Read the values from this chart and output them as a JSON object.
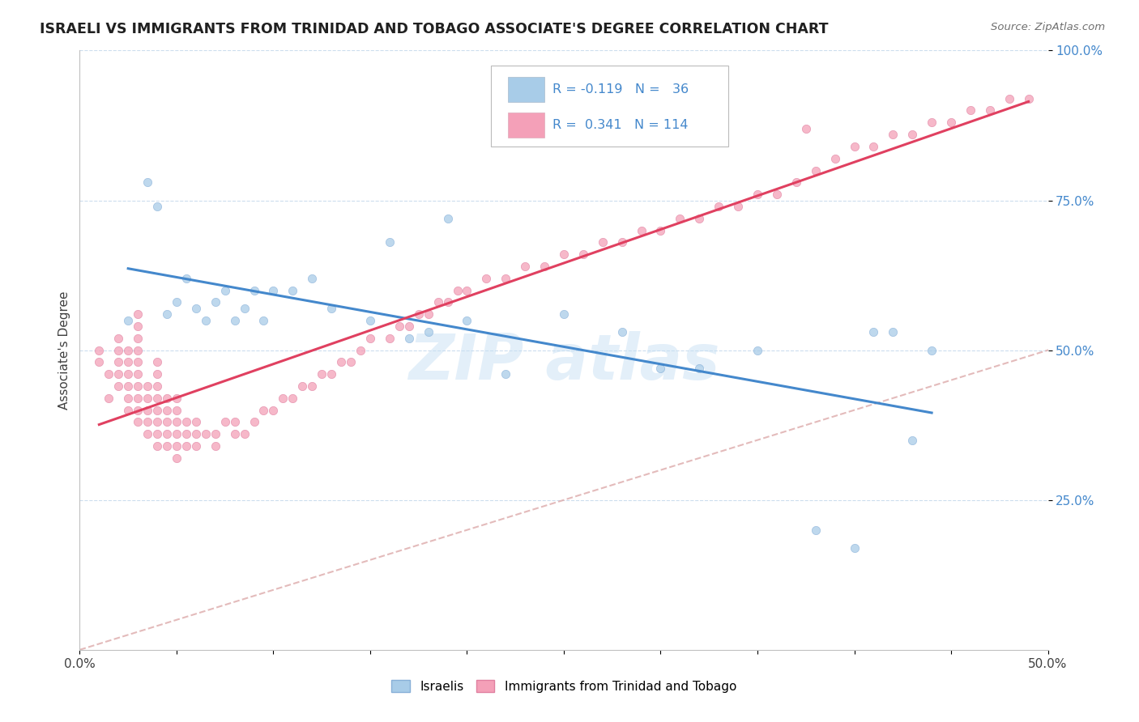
{
  "title": "ISRAELI VS IMMIGRANTS FROM TRINIDAD AND TOBAGO ASSOCIATE'S DEGREE CORRELATION CHART",
  "source": "Source: ZipAtlas.com",
  "ylabel_text": "Associate's Degree",
  "xlim": [
    0.0,
    0.5
  ],
  "ylim": [
    0.0,
    1.0
  ],
  "xtick_vals": [
    0.0,
    0.05,
    0.1,
    0.15,
    0.2,
    0.25,
    0.3,
    0.35,
    0.4,
    0.45,
    0.5
  ],
  "ytick_vals": [
    0.25,
    0.5,
    0.75,
    1.0
  ],
  "ytick_labels": [
    "25.0%",
    "50.0%",
    "75.0%",
    "100.0%"
  ],
  "color_israeli": "#a8cce8",
  "color_israeli_edge": "#88b0d8",
  "color_trinidad": "#f4a0b8",
  "color_trinidad_edge": "#e080a0",
  "color_trendline_israeli": "#4488cc",
  "color_trendline_trinidad": "#e04060",
  "color_diagonal": "#cccccc",
  "color_text_blue": "#4488cc",
  "color_grid": "#ddeeff",
  "israeli_x": [
    0.025,
    0.035,
    0.04,
    0.045,
    0.05,
    0.055,
    0.06,
    0.065,
    0.07,
    0.075,
    0.08,
    0.085,
    0.09,
    0.095,
    0.1,
    0.11,
    0.12,
    0.13,
    0.15,
    0.16,
    0.17,
    0.18,
    0.19,
    0.2,
    0.22,
    0.25,
    0.28,
    0.3,
    0.32,
    0.35,
    0.38,
    0.4,
    0.41,
    0.42,
    0.43,
    0.44
  ],
  "israeli_y": [
    0.55,
    0.78,
    0.74,
    0.56,
    0.58,
    0.62,
    0.57,
    0.55,
    0.58,
    0.6,
    0.55,
    0.57,
    0.6,
    0.55,
    0.6,
    0.6,
    0.62,
    0.57,
    0.55,
    0.68,
    0.52,
    0.53,
    0.72,
    0.55,
    0.46,
    0.56,
    0.53,
    0.47,
    0.47,
    0.5,
    0.2,
    0.17,
    0.53,
    0.53,
    0.35,
    0.5
  ],
  "trinidad_x": [
    0.01,
    0.01,
    0.015,
    0.015,
    0.02,
    0.02,
    0.02,
    0.02,
    0.02,
    0.025,
    0.025,
    0.025,
    0.025,
    0.025,
    0.025,
    0.03,
    0.03,
    0.03,
    0.03,
    0.03,
    0.03,
    0.03,
    0.03,
    0.03,
    0.03,
    0.035,
    0.035,
    0.035,
    0.035,
    0.035,
    0.04,
    0.04,
    0.04,
    0.04,
    0.04,
    0.04,
    0.04,
    0.04,
    0.045,
    0.045,
    0.045,
    0.045,
    0.045,
    0.05,
    0.05,
    0.05,
    0.05,
    0.05,
    0.05,
    0.055,
    0.055,
    0.055,
    0.06,
    0.06,
    0.06,
    0.065,
    0.07,
    0.07,
    0.075,
    0.08,
    0.08,
    0.085,
    0.09,
    0.095,
    0.1,
    0.105,
    0.11,
    0.115,
    0.12,
    0.125,
    0.13,
    0.135,
    0.14,
    0.145,
    0.15,
    0.16,
    0.165,
    0.17,
    0.175,
    0.18,
    0.185,
    0.19,
    0.195,
    0.2,
    0.21,
    0.22,
    0.23,
    0.24,
    0.25,
    0.26,
    0.27,
    0.28,
    0.29,
    0.3,
    0.31,
    0.32,
    0.33,
    0.34,
    0.35,
    0.36,
    0.37,
    0.375,
    0.38,
    0.39,
    0.4,
    0.41,
    0.42,
    0.43,
    0.44,
    0.45,
    0.46,
    0.47,
    0.48,
    0.49
  ],
  "trinidad_y": [
    0.48,
    0.5,
    0.42,
    0.46,
    0.44,
    0.46,
    0.48,
    0.5,
    0.52,
    0.4,
    0.42,
    0.44,
    0.46,
    0.48,
    0.5,
    0.38,
    0.4,
    0.42,
    0.44,
    0.46,
    0.48,
    0.5,
    0.52,
    0.54,
    0.56,
    0.36,
    0.38,
    0.4,
    0.42,
    0.44,
    0.34,
    0.36,
    0.38,
    0.4,
    0.42,
    0.44,
    0.46,
    0.48,
    0.34,
    0.36,
    0.38,
    0.4,
    0.42,
    0.32,
    0.34,
    0.36,
    0.38,
    0.4,
    0.42,
    0.34,
    0.36,
    0.38,
    0.34,
    0.36,
    0.38,
    0.36,
    0.34,
    0.36,
    0.38,
    0.36,
    0.38,
    0.36,
    0.38,
    0.4,
    0.4,
    0.42,
    0.42,
    0.44,
    0.44,
    0.46,
    0.46,
    0.48,
    0.48,
    0.5,
    0.52,
    0.52,
    0.54,
    0.54,
    0.56,
    0.56,
    0.58,
    0.58,
    0.6,
    0.6,
    0.62,
    0.62,
    0.64,
    0.64,
    0.66,
    0.66,
    0.68,
    0.68,
    0.7,
    0.7,
    0.72,
    0.72,
    0.74,
    0.74,
    0.76,
    0.76,
    0.78,
    0.87,
    0.8,
    0.82,
    0.84,
    0.84,
    0.86,
    0.86,
    0.88,
    0.88,
    0.9,
    0.9,
    0.92,
    0.92
  ]
}
